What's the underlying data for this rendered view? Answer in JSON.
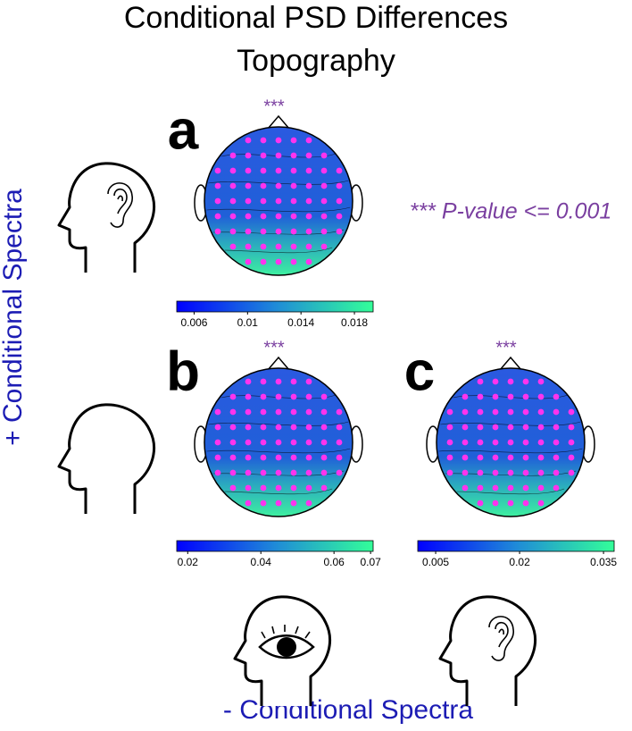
{
  "title": [
    "Conditional PSD Differences",
    "Topography"
  ],
  "significance_note": "*** P-value <= 0.001",
  "y_label": "+ Conditional Spectra",
  "x_label": "- Conditional Spectra",
  "panels": [
    {
      "label": "a",
      "significance": "***",
      "colorbar": {
        "range": [
          0.0047,
          0.0194
        ],
        "ticks": [
          0.006,
          0.01,
          0.014,
          0.018
        ]
      }
    },
    {
      "label": "b",
      "significance": "***",
      "colorbar": {
        "range": [
          0.017,
          0.0707
        ],
        "ticks": [
          0.02,
          0.04,
          0.06,
          0.07
        ]
      }
    },
    {
      "label": "c",
      "significance": "***",
      "colorbar": {
        "range": [
          0.0018,
          0.0369
        ],
        "ticks": [
          0.005,
          0.02,
          0.035
        ]
      }
    }
  ]
}
